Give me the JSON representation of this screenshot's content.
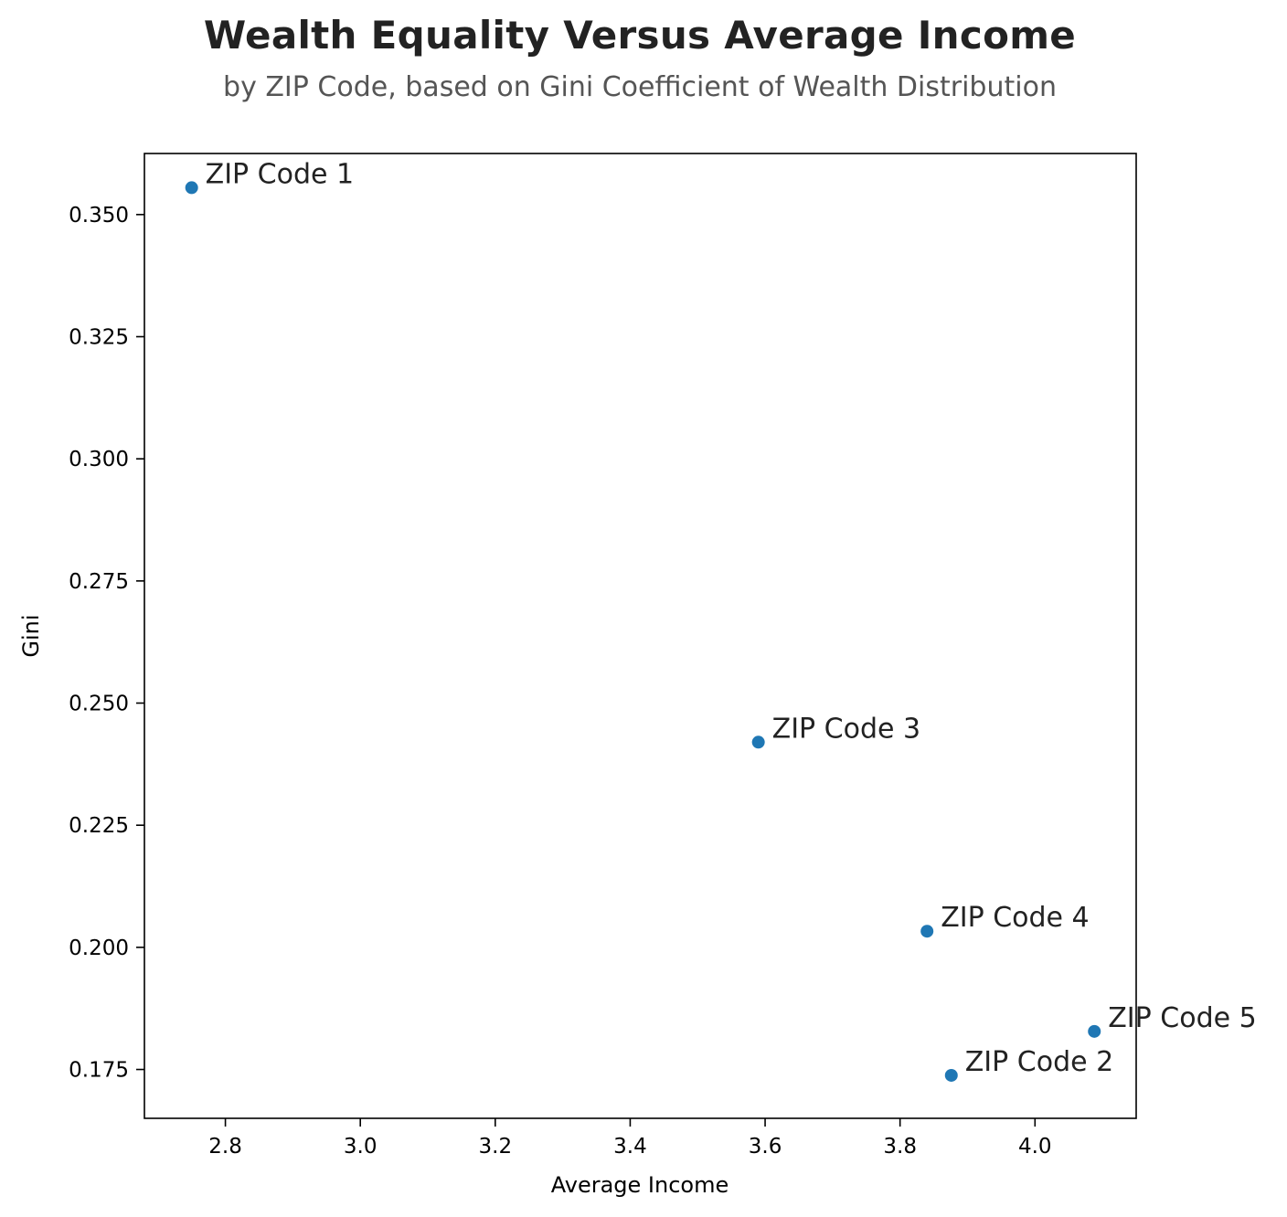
{
  "title": "Wealth Equality Versus Average Income",
  "subtitle": "by ZIP Code, based on Gini Coefficient of Wealth Distribution",
  "chart_data": {
    "type": "scatter",
    "title": "Wealth Equality Versus Average Income",
    "subtitle": "by ZIP Code, based on Gini Coefficient of Wealth Distribution",
    "xlabel": "Average Income",
    "ylabel": "Gini",
    "xlim": [
      2.68,
      4.15
    ],
    "ylim": [
      0.165,
      0.3625
    ],
    "xticks": [
      2.8,
      3.0,
      3.2,
      3.4,
      3.6,
      3.8,
      4.0
    ],
    "xtick_labels": [
      "2.8",
      "3.0",
      "3.2",
      "3.4",
      "3.6",
      "3.8",
      "4.0"
    ],
    "yticks": [
      0.175,
      0.2,
      0.225,
      0.25,
      0.275,
      0.3,
      0.325,
      0.35
    ],
    "ytick_labels": [
      "0.175",
      "0.200",
      "0.225",
      "0.250",
      "0.275",
      "0.300",
      "0.325",
      "0.350"
    ],
    "grid": false,
    "legend": "none",
    "marker_color": "#1f77b4",
    "points": [
      {
        "label": "ZIP Code 1",
        "x": 2.75,
        "y": 0.3555
      },
      {
        "label": "ZIP Code 3",
        "x": 3.59,
        "y": 0.242
      },
      {
        "label": "ZIP Code 4",
        "x": 3.84,
        "y": 0.2033
      },
      {
        "label": "ZIP Code 5",
        "x": 4.088,
        "y": 0.1828
      },
      {
        "label": "ZIP Code 2",
        "x": 3.876,
        "y": 0.1738
      }
    ]
  }
}
